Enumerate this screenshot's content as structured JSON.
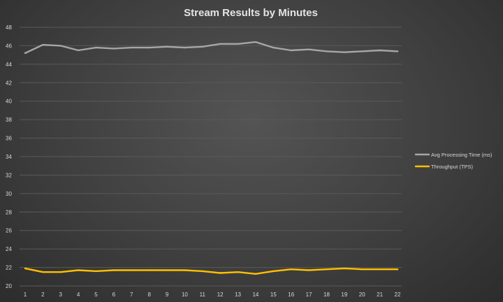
{
  "chart_data": {
    "type": "line",
    "title": "Stream Results by Minutes",
    "xlabel": "",
    "ylabel": "",
    "x": [
      1,
      2,
      3,
      4,
      5,
      6,
      7,
      8,
      9,
      10,
      11,
      12,
      13,
      14,
      15,
      16,
      17,
      18,
      19,
      20,
      21,
      22
    ],
    "ylim": [
      20,
      48
    ],
    "yticks": [
      20,
      22,
      24,
      26,
      28,
      30,
      32,
      34,
      36,
      38,
      40,
      42,
      44,
      46,
      48
    ],
    "grid": true,
    "legend_position": "right",
    "series": [
      {
        "name": "Avg Processing Time (ms)",
        "color": "#a6a6a6",
        "values": [
          45.2,
          46.1,
          46.0,
          45.5,
          45.8,
          45.7,
          45.8,
          45.8,
          45.9,
          45.8,
          45.9,
          46.2,
          46.2,
          46.4,
          45.8,
          45.5,
          45.6,
          45.4,
          45.3,
          45.4,
          45.5,
          45.4
        ]
      },
      {
        "name": "Throughput (TPS)",
        "color": "#ffc000",
        "values": [
          21.9,
          21.5,
          21.5,
          21.7,
          21.6,
          21.7,
          21.7,
          21.7,
          21.7,
          21.7,
          21.6,
          21.4,
          21.5,
          21.3,
          21.6,
          21.8,
          21.7,
          21.8,
          21.9,
          21.8,
          21.8,
          21.8
        ]
      }
    ]
  }
}
